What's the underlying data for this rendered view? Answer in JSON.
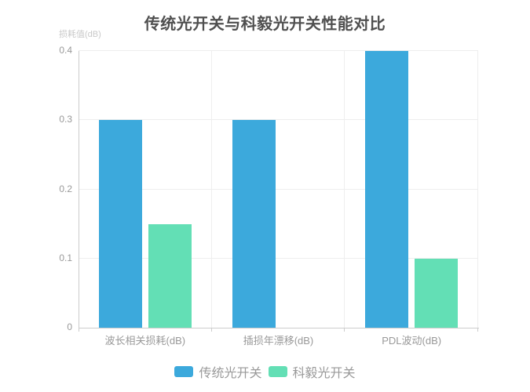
{
  "chart_data": {
    "type": "bar",
    "title": "传统光开关与科毅光开关性能对比",
    "ylabel": "损耗值(dB)",
    "xlabel": "",
    "categories": [
      "波长相关损耗(dB)",
      "插损年漂移(dB)",
      "PDL波动(dB)"
    ],
    "series": [
      {
        "name": "传统光开关",
        "color": "#3CA9DC",
        "values": [
          0.3,
          0.3,
          0.4
        ]
      },
      {
        "name": "科毅光开关",
        "color": "#63DFB5",
        "values": [
          0.15,
          0,
          0.1
        ]
      }
    ],
    "ylim": [
      0,
      0.4
    ],
    "yticks": [
      0,
      0.1,
      0.2,
      0.3,
      0.4
    ],
    "ytick_labels": [
      "0",
      "0.1",
      "0.2",
      "0.3",
      "0.4"
    ],
    "grid": true,
    "legend_position": "bottom"
  },
  "palette": {
    "background": "#ffffff",
    "title_text": "#4f4f4f",
    "axis_name_text": "#c9c9c9",
    "tick_label_text": "#999999",
    "category_label_text": "#999999",
    "legend_text": "#999999",
    "axis_line": "#cccccc",
    "grid_line": "#eeeeee"
  }
}
